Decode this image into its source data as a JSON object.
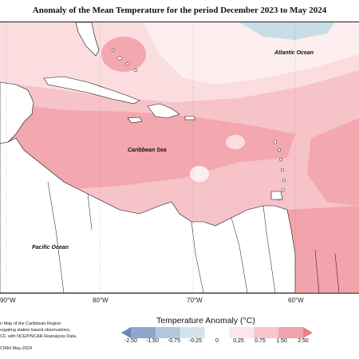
{
  "title": "Anomaly of the Mean Temperature for the period December 2023 to May 2024",
  "ocean_labels": {
    "atlantic": "Atlantic Ocean",
    "caribbean": "Caribbean Sea",
    "pacific": "Pacific Ocean"
  },
  "longitude_ticks": [
    "90°W",
    "80°W",
    "70°W",
    "60°W"
  ],
  "legend": {
    "title": "Temperature Anomaly (°C)",
    "tick_labels": [
      "-2.50",
      "-1.50",
      "-0.75",
      "-0.25",
      "0",
      "0.25",
      "0.75",
      "1.50",
      "2.50"
    ],
    "bin_colors": [
      "#6f86b8",
      "#8fa6cf",
      "#b3c6de",
      "#d3e3ec",
      "#ffffff",
      "#fde6ea",
      "#f8c6cc",
      "#f2a3ab",
      "#eb7f8a"
    ]
  },
  "credits": {
    "line1": "n Map of the Caribbean Region",
    "line2": "regating station based observations,",
    "line3": "CF, with NCEP/NCAR Reanalysis Data.",
    "line4": "CIMH May-2024"
  },
  "colors": {
    "anomaly_high": "#f3a7ae",
    "anomaly_mid": "#f6c3c8",
    "anomaly_low": "#fbdde0",
    "anomaly_near_zero": "#fdeef0",
    "anomaly_negative": "#c9dde6",
    "land": "#ffffff",
    "coastline": "#111111"
  }
}
